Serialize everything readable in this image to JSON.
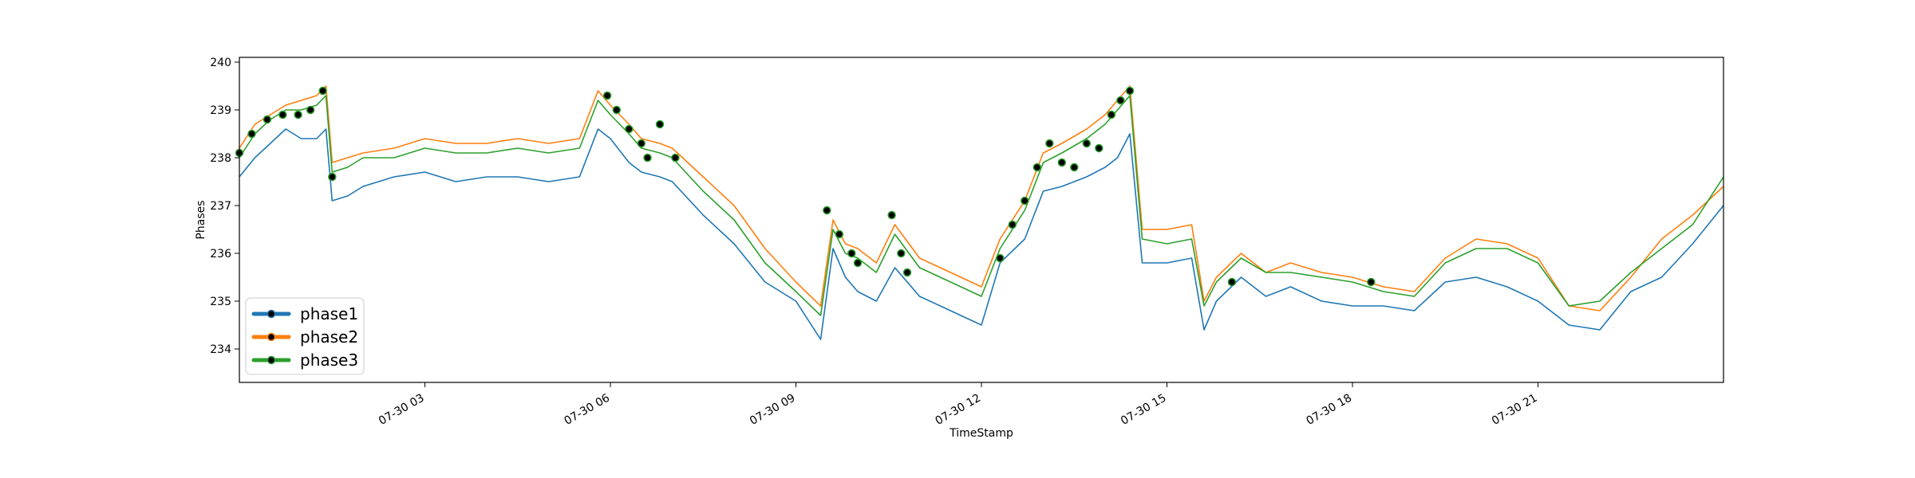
{
  "chart_data": {
    "type": "line",
    "xlabel": "TimeStamp",
    "ylabel": "Phases",
    "x_unit": "hours",
    "xlim": [
      0,
      24
    ],
    "ylim": [
      233.3,
      240.1
    ],
    "x_ticks": [
      {
        "x": 3,
        "label": "07-30 03"
      },
      {
        "x": 6,
        "label": "07-30 06"
      },
      {
        "x": 9,
        "label": "07-30 09"
      },
      {
        "x": 12,
        "label": "07-30 12"
      },
      {
        "x": 15,
        "label": "07-30 15"
      },
      {
        "x": 18,
        "label": "07-30 18"
      },
      {
        "x": 21,
        "label": "07-30 21"
      }
    ],
    "y_ticks": [
      234,
      235,
      236,
      237,
      238,
      239,
      240
    ],
    "grid": false,
    "legend_position": "lower-left",
    "x": [
      0.0,
      0.25,
      0.5,
      0.75,
      1.0,
      1.25,
      1.4,
      1.5,
      1.75,
      2.0,
      2.5,
      3.0,
      3.5,
      4.0,
      4.5,
      5.0,
      5.5,
      5.8,
      6.0,
      6.3,
      6.5,
      6.8,
      7.0,
      7.5,
      8.0,
      8.5,
      9.0,
      9.4,
      9.6,
      9.8,
      10.0,
      10.3,
      10.6,
      11.0,
      11.5,
      12.0,
      12.3,
      12.7,
      13.0,
      13.3,
      13.7,
      14.0,
      14.2,
      14.4,
      14.6,
      15.0,
      15.4,
      15.6,
      15.8,
      16.2,
      16.6,
      17.0,
      17.5,
      18.0,
      18.5,
      19.0,
      19.5,
      20.0,
      20.5,
      21.0,
      21.5,
      22.0,
      22.5,
      23.0,
      23.5,
      24.0
    ],
    "series": [
      {
        "name": "phase1",
        "color": "#1f77b4",
        "values": [
          237.6,
          238.0,
          238.3,
          238.6,
          238.4,
          238.4,
          238.6,
          237.1,
          237.2,
          237.4,
          237.6,
          237.7,
          237.5,
          237.6,
          237.6,
          237.5,
          237.6,
          238.6,
          238.4,
          237.9,
          237.7,
          237.6,
          237.5,
          236.8,
          236.2,
          235.4,
          235.0,
          234.2,
          236.1,
          235.5,
          235.2,
          235.0,
          235.7,
          235.1,
          234.8,
          234.5,
          235.8,
          236.3,
          237.3,
          237.4,
          237.6,
          237.8,
          238.0,
          238.5,
          235.8,
          235.8,
          235.9,
          234.4,
          235.0,
          235.5,
          235.1,
          235.3,
          235.0,
          234.9,
          234.9,
          234.8,
          235.4,
          235.5,
          235.3,
          235.0,
          234.5,
          234.4,
          235.2,
          235.5,
          236.2,
          237.0
        ]
      },
      {
        "name": "phase2",
        "color": "#ff7f0e",
        "values": [
          238.2,
          238.7,
          238.9,
          239.1,
          239.2,
          239.3,
          239.5,
          237.9,
          238.0,
          238.1,
          238.2,
          238.4,
          238.3,
          238.3,
          238.4,
          238.3,
          238.4,
          239.4,
          239.1,
          238.7,
          238.4,
          238.3,
          238.2,
          237.6,
          237.0,
          236.1,
          235.4,
          234.9,
          236.7,
          236.2,
          236.1,
          235.8,
          236.6,
          235.9,
          235.6,
          235.3,
          236.3,
          237.1,
          238.1,
          238.3,
          238.6,
          238.9,
          239.2,
          239.5,
          236.5,
          236.5,
          236.6,
          235.0,
          235.5,
          236.0,
          235.6,
          235.8,
          235.6,
          235.5,
          235.3,
          235.2,
          235.9,
          236.3,
          236.2,
          235.9,
          234.9,
          234.8,
          235.5,
          236.3,
          236.8,
          237.4
        ]
      },
      {
        "name": "phase3",
        "color": "#2ca02c",
        "values": [
          238.0,
          238.5,
          238.8,
          239.0,
          239.0,
          239.1,
          239.3,
          237.7,
          237.8,
          238.0,
          238.0,
          238.2,
          238.1,
          238.1,
          238.2,
          238.1,
          238.2,
          239.2,
          238.9,
          238.5,
          238.2,
          238.1,
          238.0,
          237.3,
          236.7,
          235.8,
          235.2,
          234.7,
          236.5,
          236.0,
          235.9,
          235.6,
          236.4,
          235.7,
          235.4,
          235.1,
          236.1,
          236.9,
          237.9,
          238.1,
          238.4,
          238.7,
          239.0,
          239.3,
          236.3,
          236.2,
          236.3,
          234.9,
          235.4,
          235.9,
          235.6,
          235.6,
          235.5,
          235.4,
          235.2,
          235.1,
          235.8,
          236.1,
          236.1,
          235.8,
          234.9,
          235.0,
          235.6,
          236.1,
          236.6,
          237.6
        ]
      }
    ],
    "markers": [
      {
        "x": 0.0,
        "y": 238.1
      },
      {
        "x": 0.2,
        "y": 238.5
      },
      {
        "x": 0.45,
        "y": 238.8
      },
      {
        "x": 0.7,
        "y": 238.9
      },
      {
        "x": 0.95,
        "y": 238.9
      },
      {
        "x": 1.15,
        "y": 239.0
      },
      {
        "x": 1.35,
        "y": 239.4
      },
      {
        "x": 1.5,
        "y": 237.6
      },
      {
        "x": 5.95,
        "y": 239.3
      },
      {
        "x": 6.1,
        "y": 239.0
      },
      {
        "x": 6.3,
        "y": 238.6
      },
      {
        "x": 6.5,
        "y": 238.3
      },
      {
        "x": 6.6,
        "y": 238.0
      },
      {
        "x": 6.8,
        "y": 238.7
      },
      {
        "x": 7.05,
        "y": 238.0
      },
      {
        "x": 9.5,
        "y": 236.9
      },
      {
        "x": 9.7,
        "y": 236.4
      },
      {
        "x": 9.9,
        "y": 236.0
      },
      {
        "x": 10.0,
        "y": 235.8
      },
      {
        "x": 10.55,
        "y": 236.8
      },
      {
        "x": 10.7,
        "y": 236.0
      },
      {
        "x": 10.8,
        "y": 235.6
      },
      {
        "x": 12.3,
        "y": 235.9
      },
      {
        "x": 12.5,
        "y": 236.6
      },
      {
        "x": 12.7,
        "y": 237.1
      },
      {
        "x": 12.9,
        "y": 237.8
      },
      {
        "x": 13.1,
        "y": 238.3
      },
      {
        "x": 13.3,
        "y": 237.9
      },
      {
        "x": 13.5,
        "y": 237.8
      },
      {
        "x": 13.7,
        "y": 238.3
      },
      {
        "x": 13.9,
        "y": 238.2
      },
      {
        "x": 14.1,
        "y": 238.9
      },
      {
        "x": 14.25,
        "y": 239.2
      },
      {
        "x": 14.4,
        "y": 239.4
      },
      {
        "x": 16.05,
        "y": 235.4
      },
      {
        "x": 18.3,
        "y": 235.4
      }
    ]
  },
  "legend": {
    "items": [
      "phase1",
      "phase2",
      "phase3"
    ]
  }
}
